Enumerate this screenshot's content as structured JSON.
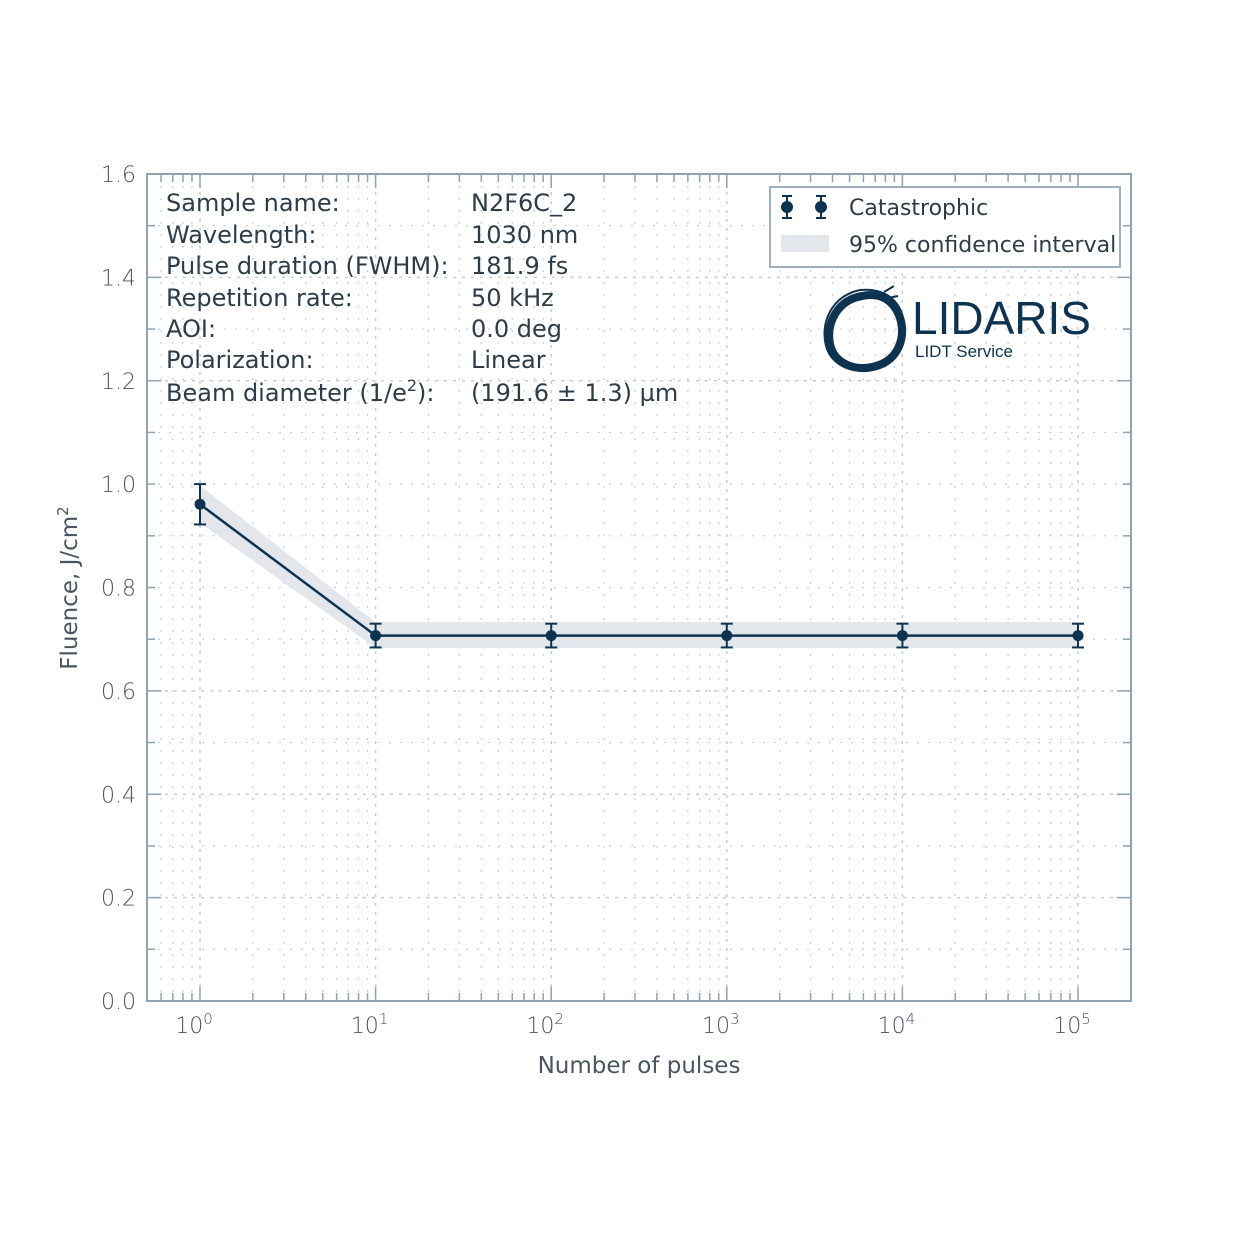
{
  "chart_data": {
    "type": "line",
    "title": "",
    "xlabel": "Number of pulses",
    "ylabel": "Fluence, J/cm²",
    "xscale": "log",
    "x_ticks": [
      "10^0",
      "10^1",
      "10^2",
      "10^3",
      "10^4",
      "10^5"
    ],
    "y_ticks": [
      "0.0",
      "0.2",
      "0.4",
      "0.6",
      "0.8",
      "1.0",
      "1.2",
      "1.4",
      "1.6"
    ],
    "ylim": [
      0,
      1.6
    ],
    "xlim": [
      0.5,
      200000
    ],
    "grid": true,
    "legend_position": "upper right",
    "x": [
      1,
      10,
      100,
      1000,
      10000,
      100000
    ],
    "series": [
      {
        "name": "Catastrophic",
        "values": [
          0.961,
          0.707,
          0.707,
          0.707,
          0.707,
          0.707
        ],
        "err_low": [
          0.922,
          0.684,
          0.684,
          0.684,
          0.684,
          0.684
        ],
        "err_high": [
          1.0,
          0.73,
          0.73,
          0.73,
          0.73,
          0.73
        ]
      },
      {
        "name": "95% confidence interval",
        "band_low": [
          0.925,
          0.683,
          0.683,
          0.683,
          0.683,
          0.683
        ],
        "band_high": [
          0.997,
          0.733,
          0.733,
          0.733,
          0.733,
          0.733
        ]
      }
    ],
    "colors": {
      "line": "#0e3350",
      "band": "#e3e7eb",
      "axis": "#8fa3b0",
      "grid": "#c4ced5"
    }
  },
  "info": {
    "labels": [
      "Sample name:",
      "Wavelength:",
      "Pulse duration (FWHM):",
      "Repetition rate:",
      "AOI:",
      "Polarization:",
      "Beam diameter (1/e"
    ],
    "beam_sup": "2",
    "beam_suffix": "):",
    "values": [
      "N2F6C_2",
      "1030 nm",
      "181.9 fs",
      "50 kHz",
      "0.0 deg",
      "Linear",
      "(191.6 ± 1.3) µm"
    ]
  },
  "legend": {
    "items": [
      "Catastrophic",
      "95% confidence interval"
    ]
  },
  "logo": {
    "name": "LIDARIS",
    "tagline": "LIDT Service"
  },
  "axes": {
    "xlabel": "Number of pulses",
    "ylabel_main": "Fluence, J/cm",
    "ylabel_sup": "2",
    "x_base": "10",
    "x_exps": [
      "0",
      "1",
      "2",
      "3",
      "4",
      "5"
    ],
    "y_ticks": [
      "0.0",
      "0.2",
      "0.4",
      "0.6",
      "0.8",
      "1.0",
      "1.2",
      "1.4",
      "1.6"
    ]
  }
}
